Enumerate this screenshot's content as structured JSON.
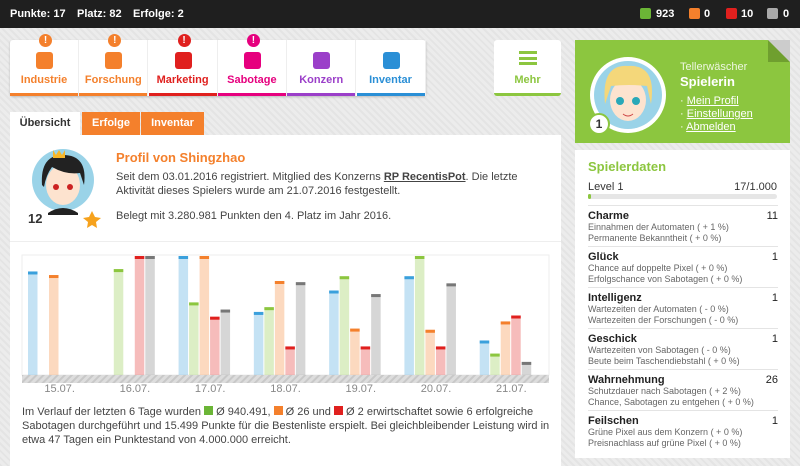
{
  "topbar": {
    "stats": [
      "Punkte: 17",
      "Platz: 82",
      "Erfolge: 2"
    ],
    "resources": [
      923,
      0,
      10,
      0
    ]
  },
  "nav": {
    "items": [
      {
        "label": "Industrie",
        "badge": "!"
      },
      {
        "label": "Forschung",
        "badge": "!"
      },
      {
        "label": "Marketing",
        "badge": "!"
      },
      {
        "label": "Sabotage",
        "badge": "!"
      },
      {
        "label": "Konzern"
      },
      {
        "label": "Inventar"
      }
    ],
    "more": "Mehr"
  },
  "tabs": [
    "Übersicht",
    "Erfolge",
    "Inventar"
  ],
  "profile": {
    "rank": 12,
    "title": "Profil von Shingzhao",
    "text1": "Seit dem 03.01.2016 registriert. Mitglied des Konzerns",
    "company": "RP RecentisPot",
    "text2": ". Die letzte Aktivität dieses Spielers wurde am 21.07.2016 festgestellt.",
    "text3": "Belegt mit 3.280.981 Punkten den 4. Platz im Jahr 2016."
  },
  "chart_data": {
    "type": "bar",
    "categories": [
      "15.07.",
      "16.07.",
      "17.07.",
      "18.07.",
      "19.07.",
      "20.07.",
      "21.07."
    ],
    "series": [
      {
        "color": "#3aa0dc",
        "values": [
          87,
          0,
          100,
          53,
          71,
          83,
          29
        ]
      },
      {
        "color": "#8cc63f",
        "values": [
          0,
          89,
          61,
          57,
          83,
          100,
          18
        ]
      },
      {
        "color": "#f4802c",
        "values": [
          84,
          0,
          100,
          79,
          39,
          38,
          45
        ]
      },
      {
        "color": "#e0201e",
        "values": [
          0,
          100,
          49,
          24,
          24,
          24,
          50
        ]
      },
      {
        "color": "#777777",
        "values": [
          0,
          100,
          55,
          78,
          68,
          77,
          11
        ]
      }
    ],
    "ylim": [
      0,
      100
    ]
  },
  "summary": {
    "part1": "Im Verlauf der letzten 6 Tage wurden",
    "part2": "Ø 940.491,",
    "part3": "Ø 26 und",
    "part4": "Ø 2 erwirtschaftet sowie 6 erfolgreiche Sabotagen durchgeführt und 15.499 Punkte für die Bestenliste erspielt. Bei gleichbleibender Leistung wird in etwa 47 Tagen ein Punktestand von 4.000.000 erreicht."
  },
  "player": {
    "rank": 1,
    "rank_title": "Tellerwäscher",
    "role": "Spielerin",
    "links": [
      "Mein Profil",
      "Einstellungen",
      "Abmelden"
    ]
  },
  "stats": {
    "title": "Spielerdaten",
    "level": "Level 1",
    "progress": "17/1.000",
    "items": [
      {
        "name": "Charme",
        "value": 11,
        "lines": [
          "Einnahmen der Automaten ( + 1 %)",
          "Permanente Bekanntheit ( + 0 %)"
        ]
      },
      {
        "name": "Glück",
        "value": 1,
        "lines": [
          "Chance auf doppelte Pixel ( + 0 %)",
          "Erfolgschance von Sabotagen ( + 0 %)"
        ]
      },
      {
        "name": "Intelligenz",
        "value": 1,
        "lines": [
          "Wartezeiten der Automaten ( - 0 %)",
          "Wartezeiten der Forschungen ( - 0 %)"
        ]
      },
      {
        "name": "Geschick",
        "value": 1,
        "lines": [
          "Wartezeiten von Sabotagen ( - 0 %)",
          "Beute beim Taschendiebstahl ( + 0 %)"
        ]
      },
      {
        "name": "Wahrnehmung",
        "value": 26,
        "lines": [
          "Schutzdauer nach Sabotagen ( + 2 %)",
          "Chance, Sabotagen zu entgehen ( + 0 %)"
        ]
      },
      {
        "name": "Feilschen",
        "value": 1,
        "lines": [
          "Grüne Pixel aus dem Konzern ( + 0 %)",
          "Preisnachlass auf grüne Pixel ( + 0 %)"
        ]
      }
    ]
  }
}
